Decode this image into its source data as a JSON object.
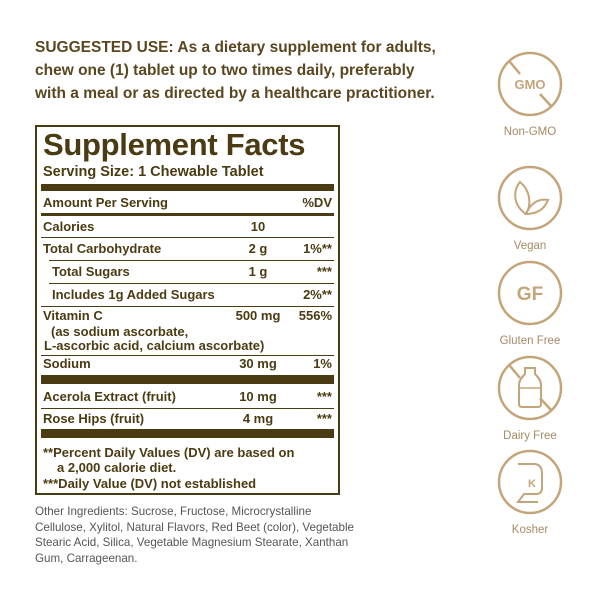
{
  "suggested_use": {
    "lines": [
      "SUGGESTED USE: As a dietary supplement for adults,",
      "chew one (1) tablet up to two times daily, preferably",
      "with a meal or as directed by a healthcare practitioner."
    ]
  },
  "facts": {
    "title": "Supplement Facts",
    "serving_size": "Serving Size: 1 Chewable Tablet",
    "header": {
      "amount": "Amount Per Serving",
      "dv": "%DV"
    },
    "rows": [
      {
        "name": "Calories",
        "amount": "10",
        "dv": ""
      },
      {
        "name": "Total Carbohydrate",
        "amount": "2 g",
        "dv": "1%**"
      },
      {
        "name": "Total Sugars",
        "amount": "1 g",
        "dv": "***"
      },
      {
        "name": "Includes 1g Added Sugars",
        "amount": "",
        "dv": "2%**"
      },
      {
        "name": "Vitamin C",
        "amount": "500 mg",
        "dv": "556%"
      },
      {
        "name": "Sodium",
        "amount": "30 mg",
        "dv": "1%"
      },
      {
        "name": "Acerola Extract (fruit)",
        "amount": "10 mg",
        "dv": "***"
      },
      {
        "name": "Rose Hips (fruit)",
        "amount": "4 mg",
        "dv": "***"
      }
    ],
    "vitamin_c_sources": [
      "(as sodium ascorbate,",
      "L-ascorbic acid, calcium ascorbate)"
    ],
    "footnotes": [
      "**Percent Daily Values (DV) are based on",
      "a 2,000 calorie diet.",
      "***Daily Value (DV) not established"
    ]
  },
  "other_ingredients": "Other Ingredients: Sucrose, Fructose, Microcrystalline Cellulose, Xylitol, Natural Flavors, Red Beet (color), Vegetable Stearic Acid, Silica, Vegetable Magnesium Stearate, Xanthan Gum, Carrageenan.",
  "badges": [
    {
      "icon": "gmo-crossed-icon",
      "text": "GMO",
      "label": "Non-GMO"
    },
    {
      "icon": "leaf-icon",
      "label": "Vegan"
    },
    {
      "icon": "gf-icon",
      "text": "GF",
      "label": "Gluten Free"
    },
    {
      "icon": "milk-bottle-crossed-icon",
      "label": "Dairy Free"
    },
    {
      "icon": "kosher-icon",
      "text": "K",
      "label": "Kosher"
    }
  ],
  "colors": {
    "label": "#4b3b12",
    "text": "#5a4720",
    "badge": "#c4a57a"
  }
}
